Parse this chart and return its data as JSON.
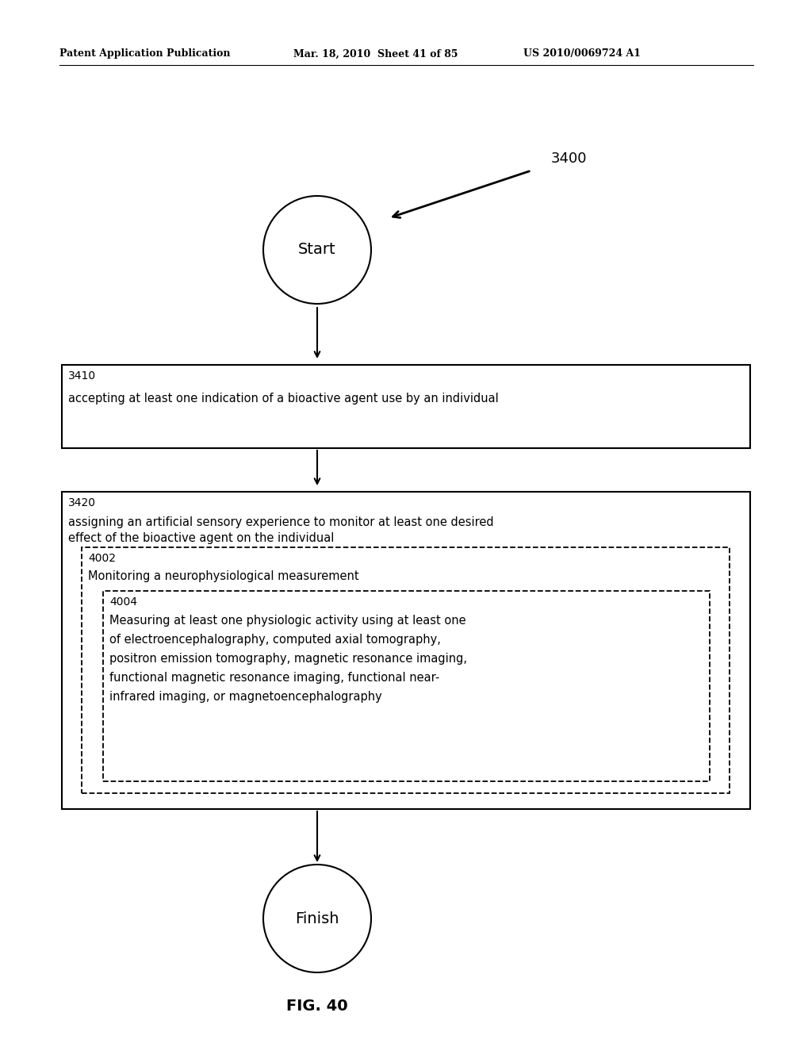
{
  "bg_color": "#ffffff",
  "header_left": "Patent Application Publication",
  "header_mid": "Mar. 18, 2010  Sheet 41 of 85",
  "header_right": "US 2010/0069724 A1",
  "label_3400": "3400",
  "start_text": "Start",
  "finish_text": "Finish",
  "fig_label": "FIG. 40",
  "box3410_label": "3410",
  "box3410_text": "accepting at least one indication of a bioactive agent use by an individual",
  "box3420_label": "3420",
  "box3420_line1": "assigning an artificial sensory experience to monitor at least one desired",
  "box3420_line2": "effect of the bioactive agent on the individual",
  "box4002_label": "4002",
  "box4002_text": "Monitoring a neurophysiological measurement",
  "box4004_label": "4004",
  "box4004_lines": [
    "Measuring at least one physiologic activity using at least one",
    "of electroencephalography, computed axial tomography,",
    "positron emission tomography, magnetic resonance imaging,",
    "functional magnetic resonance imaging, functional near-",
    "infrared imaging, or magnetoencephalography"
  ]
}
